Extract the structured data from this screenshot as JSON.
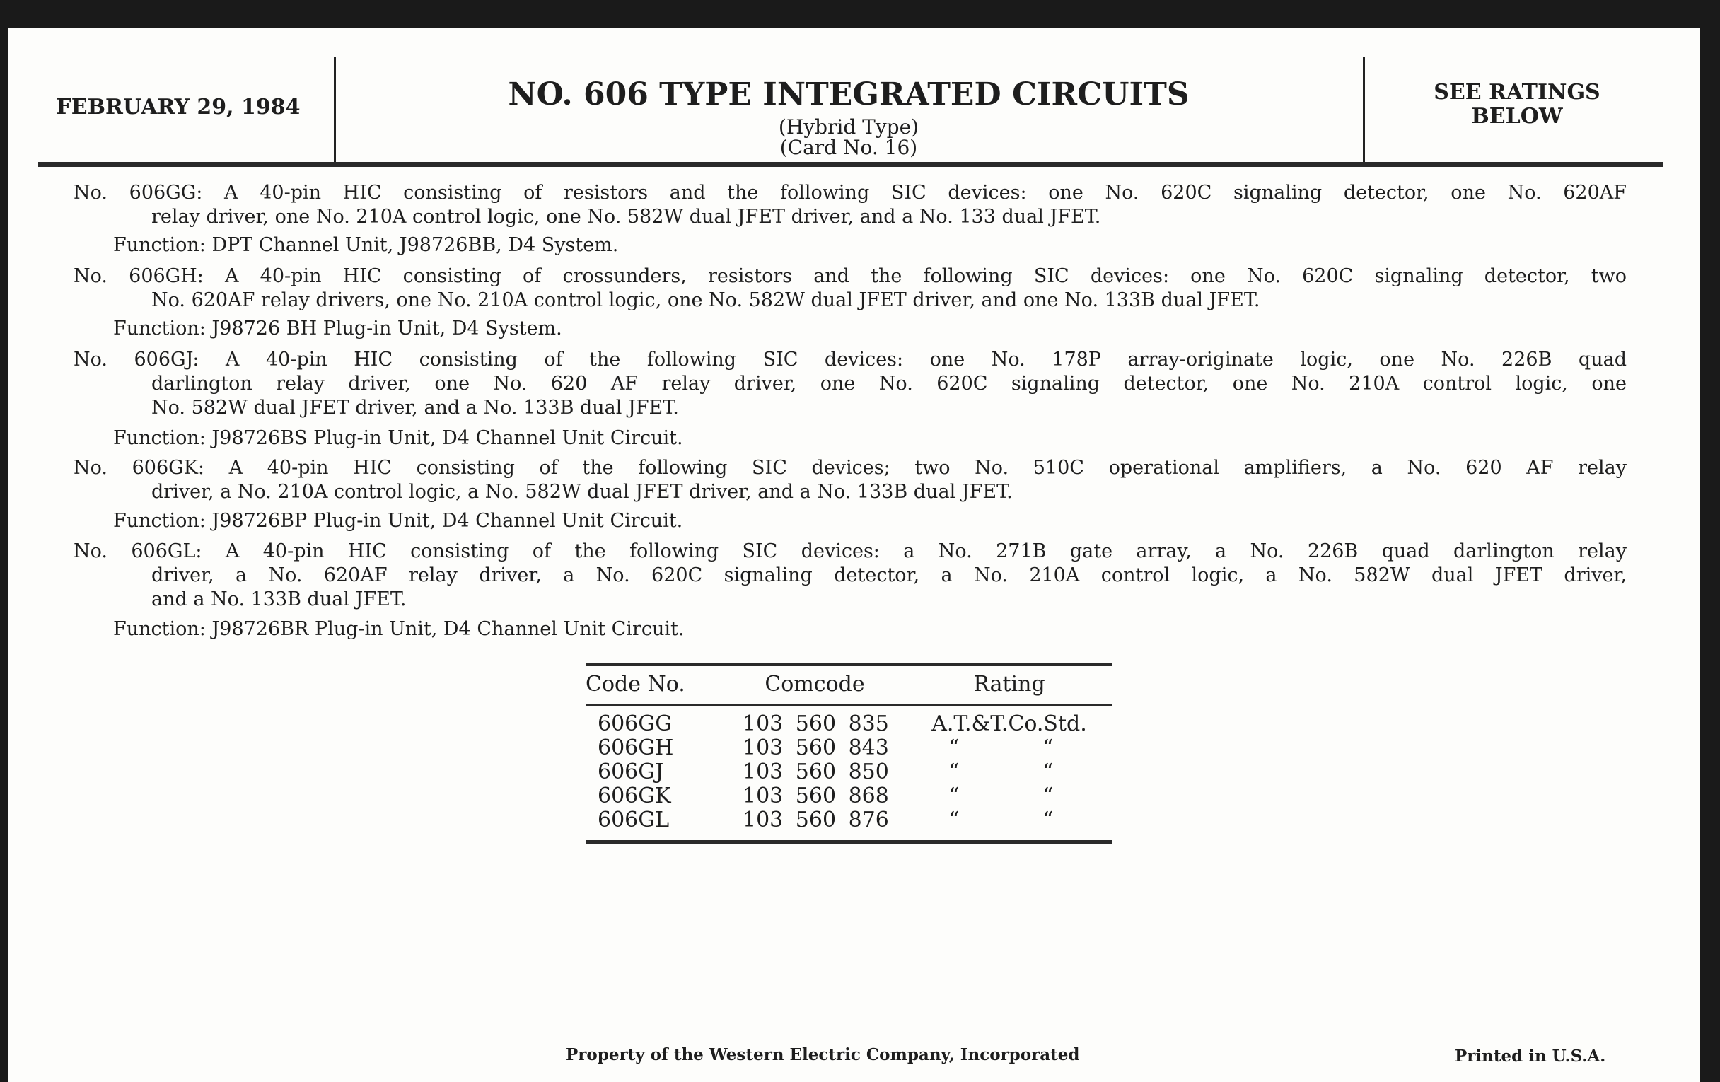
{
  "header": {
    "date": "FEBRUARY 29, 1984",
    "title": "NO. 606 TYPE INTEGRATED CIRCUITS",
    "subtitle1": "(Hybrid Type)",
    "subtitle2": "(Card No. 16)",
    "ratings_note_line1": "SEE RATINGS",
    "ratings_note_line2": "BELOW"
  },
  "entries": [
    {
      "lines": [
        "No. 606GG: A 40-pin HIC consisting of resistors and the following SIC devices: one No. 620C signaling detector, one No. 620AF",
        "relay driver, one No. 210A control logic, one No. 582W dual JFET driver, and a No. 133 dual JFET."
      ],
      "function": "Function: DPT Channel Unit, J98726BB, D4 System."
    },
    {
      "lines": [
        "No. 606GH: A 40-pin HIC consisting of crossunders, resistors and the following SIC devices: one No. 620C signaling detector, two",
        "No. 620AF relay drivers, one No. 210A control logic, one No. 582W dual JFET driver, and one No. 133B dual JFET."
      ],
      "function": "Function: J98726 BH Plug-in Unit, D4 System."
    },
    {
      "lines": [
        "No. 606GJ: A 40-pin HIC consisting of the following SIC devices: one No. 178P array-originate logic, one No. 226B quad",
        "darlington relay driver, one No. 620 AF relay driver, one No. 620C signaling detector, one No. 210A control logic, one",
        "No. 582W dual JFET driver, and a No. 133B dual JFET."
      ],
      "function": "Function: J98726BS Plug-in Unit, D4 Channel Unit Circuit."
    },
    {
      "lines": [
        "No. 606GK: A 40-pin HIC consisting of the following SIC devices; two No. 510C operational amplifiers, a No. 620 AF relay",
        "driver, a No. 210A control logic, a No. 582W dual JFET driver, and a No. 133B dual JFET."
      ],
      "function": "Function: J98726BP Plug-in Unit, D4 Channel Unit Circuit."
    },
    {
      "lines": [
        "No. 606GL: A 40-pin HIC consisting of the following SIC devices: a No. 271B gate array, a No. 226B quad darlington relay",
        "driver, a No. 620AF relay driver, a No. 620C signaling detector, a No. 210A control logic, a No. 582W dual JFET driver,",
        "and a No. 133B dual JFET."
      ],
      "function": "Function: J98726BR Plug-in Unit, D4 Channel Unit Circuit."
    }
  ],
  "table": {
    "headers": [
      "Code No.",
      "Comcode",
      "Rating"
    ],
    "rows": [
      {
        "code": "606GG",
        "comcode": "103 560 835",
        "rating": "A.T.&T.Co.Std."
      },
      {
        "code": "606GH",
        "comcode": "103 560 843",
        "ditto1": "“",
        "ditto2": "“"
      },
      {
        "code": "606GJ",
        "comcode": "103 560 850",
        "ditto1": "“",
        "ditto2": "“"
      },
      {
        "code": "606GK",
        "comcode": "103 560 868",
        "ditto1": "“",
        "ditto2": "“"
      },
      {
        "code": "606GL",
        "comcode": "103 560 876",
        "ditto1": "“",
        "ditto2": "“"
      }
    ]
  },
  "footer": {
    "property": "Property of the Western Electric Company, Incorporated",
    "printed": "Printed in U.S.A."
  }
}
